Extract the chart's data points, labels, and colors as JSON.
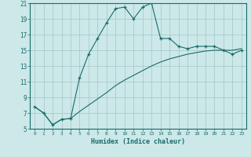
{
  "xlabel": "Humidex (Indice chaleur)",
  "bg_color": "#cce8e8",
  "grid_color": "#aacccc",
  "line_color": "#1a6b6b",
  "xlim": [
    -0.5,
    23.5
  ],
  "ylim": [
    5,
    21
  ],
  "yticks": [
    5,
    7,
    9,
    11,
    13,
    15,
    17,
    19,
    21
  ],
  "xticks": [
    0,
    1,
    2,
    3,
    4,
    5,
    6,
    7,
    8,
    9,
    10,
    11,
    12,
    13,
    14,
    15,
    16,
    17,
    18,
    19,
    20,
    21,
    22,
    23
  ],
  "series1_x": [
    0,
    1,
    2,
    3,
    4,
    5,
    6,
    7,
    8,
    9,
    10,
    11,
    12,
    13,
    14,
    15,
    16,
    17,
    18,
    19,
    20,
    21,
    22,
    23
  ],
  "series1_y": [
    7.8,
    7.0,
    5.5,
    6.2,
    6.3,
    11.5,
    14.5,
    16.5,
    18.5,
    20.3,
    20.5,
    19.0,
    20.5,
    21.0,
    16.5,
    16.5,
    15.5,
    15.2,
    15.5,
    15.5,
    15.5,
    15.0,
    14.5,
    15.0
  ],
  "series2_x": [
    0,
    1,
    2,
    3,
    4,
    5,
    6,
    7,
    8,
    9,
    10,
    11,
    12,
    13,
    14,
    15,
    16,
    17,
    18,
    19,
    20,
    21,
    22,
    23
  ],
  "series2_y": [
    7.8,
    7.0,
    5.5,
    6.2,
    6.3,
    7.2,
    8.0,
    8.8,
    9.6,
    10.5,
    11.2,
    11.8,
    12.4,
    13.0,
    13.5,
    13.9,
    14.2,
    14.5,
    14.7,
    14.9,
    15.0,
    15.0,
    15.0,
    15.2
  ]
}
